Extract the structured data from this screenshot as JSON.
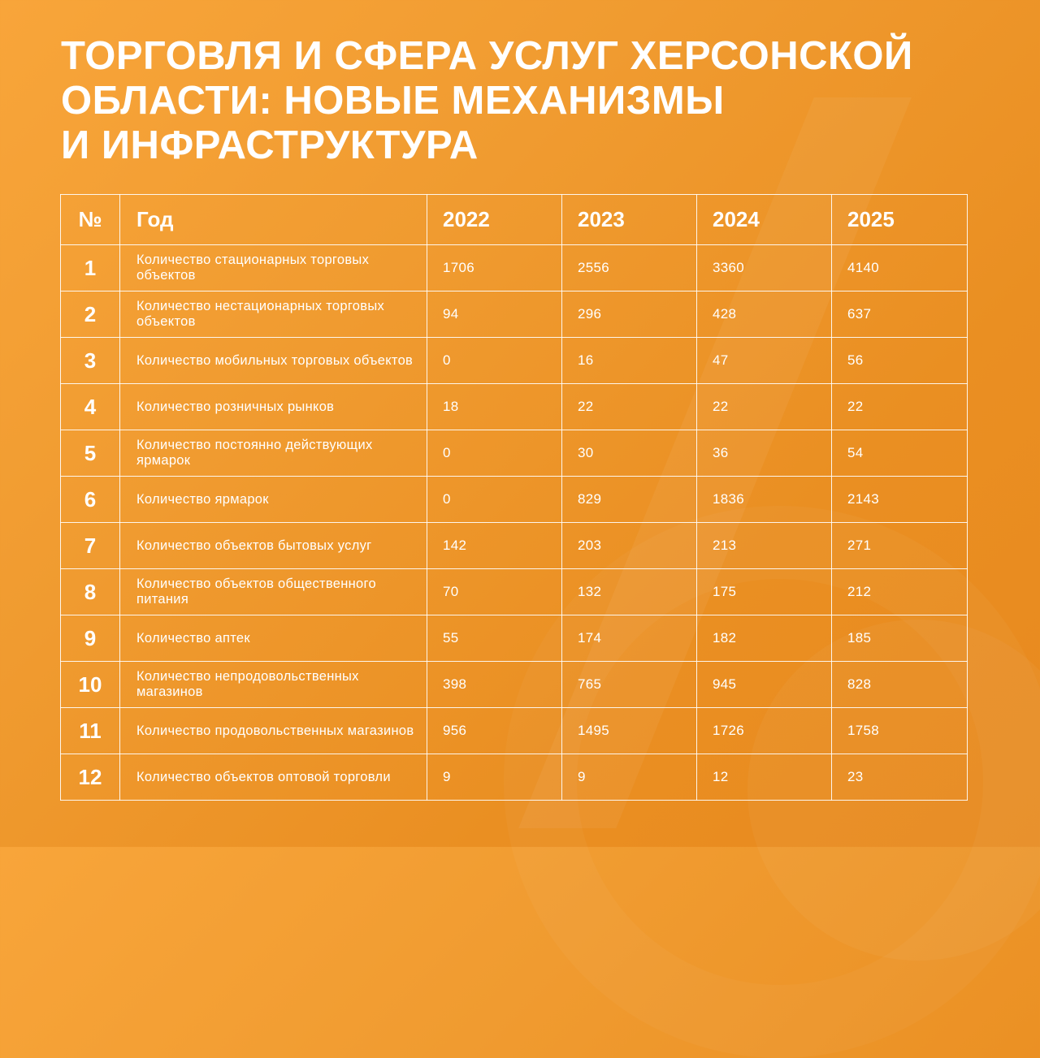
{
  "title_lines": [
    "ТОРГОВЛЯ И СФЕРА УСЛУГ ХЕРСОНСКОЙ",
    "ОБЛАСТИ: НОВЫЕ МЕХАНИЗМЫ",
    "И ИНФРАСТРУКТУРА"
  ],
  "table": {
    "headers": [
      "№",
      "Год",
      "2022",
      "2023",
      "2024",
      "2025"
    ],
    "rows": [
      {
        "num": "1",
        "name": "Количество стационарных торговых объектов",
        "values": [
          "1706",
          "2556",
          "3360",
          "4140"
        ]
      },
      {
        "num": "2",
        "name": "Количество нестационарных торговых объектов",
        "values": [
          "94",
          "296",
          "428",
          "637"
        ]
      },
      {
        "num": "3",
        "name": "Количество мобильных торговых объектов",
        "values": [
          "0",
          "16",
          "47",
          "56"
        ]
      },
      {
        "num": "4",
        "name": "Количество розничных рынков",
        "values": [
          "18",
          "22",
          "22",
          "22"
        ]
      },
      {
        "num": "5",
        "name": "Количество постоянно действующих ярмарок",
        "values": [
          "0",
          "30",
          "36",
          "54"
        ]
      },
      {
        "num": "6",
        "name": "Количество ярмарок",
        "values": [
          "0",
          "829",
          "1836",
          "2143"
        ]
      },
      {
        "num": "7",
        "name": "Количество объектов бытовых услуг",
        "values": [
          "142",
          "203",
          "213",
          "271"
        ]
      },
      {
        "num": "8",
        "name": "Количество объектов общественного питания",
        "values": [
          "70",
          "132",
          "175",
          "212"
        ]
      },
      {
        "num": "9",
        "name": "Количество аптек",
        "values": [
          "55",
          "174",
          "182",
          "185"
        ]
      },
      {
        "num": "10",
        "name": "Количество непродовольственных магазинов",
        "values": [
          "398",
          "765",
          "945",
          "828"
        ]
      },
      {
        "num": "11",
        "name": "Количество продовольственных магазинов",
        "values": [
          "956",
          "1495",
          "1726",
          "1758"
        ]
      },
      {
        "num": "12",
        "name": "Количество объектов оптовой торговли",
        "values": [
          "9",
          "9",
          "12",
          "23"
        ]
      }
    ]
  }
}
